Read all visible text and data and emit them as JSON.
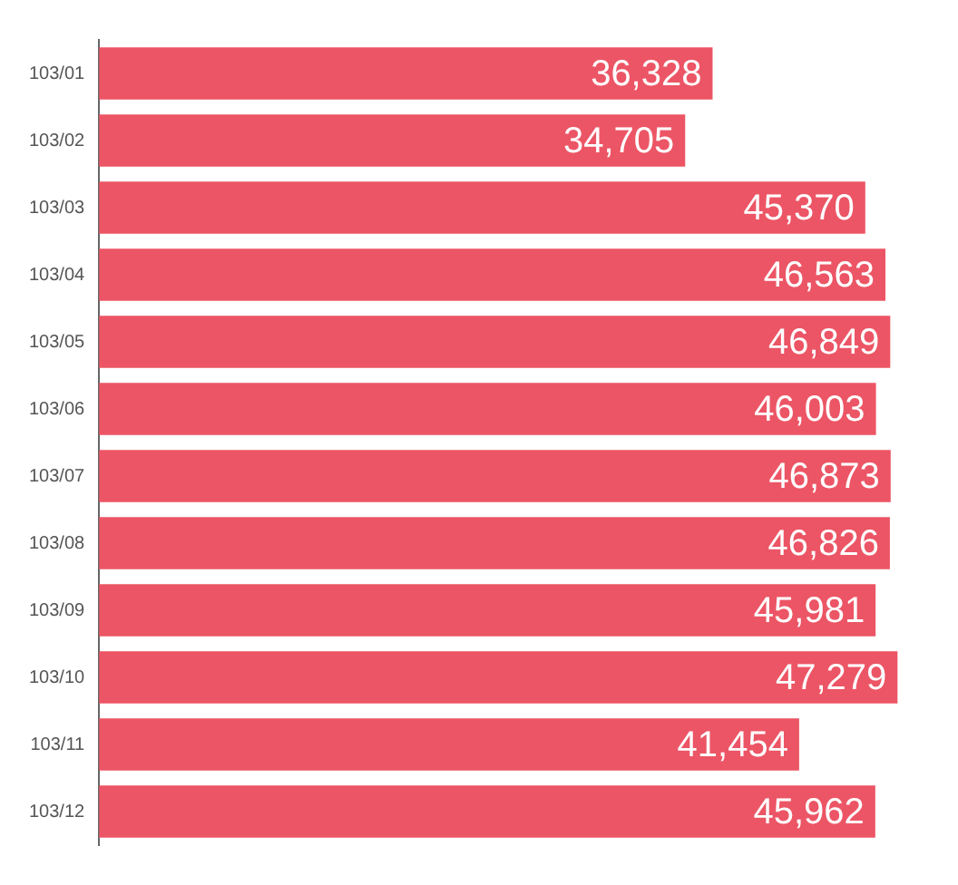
{
  "chart_data": {
    "type": "bar",
    "orientation": "horizontal",
    "categories": [
      "103/01",
      "103/02",
      "103/03",
      "103/04",
      "103/05",
      "103/06",
      "103/07",
      "103/08",
      "103/09",
      "103/10",
      "103/11",
      "103/12"
    ],
    "values": [
      36328,
      34705,
      45370,
      46563,
      46849,
      46003,
      46873,
      46826,
      45981,
      47279,
      41454,
      45962
    ],
    "value_labels": [
      "36,328",
      "34,705",
      "45,370",
      "46,563",
      "46,849",
      "46,003",
      "46,873",
      "46,826",
      "45,981",
      "47,279",
      "41,454",
      "45,962"
    ],
    "color": "#ec5565",
    "grid": false,
    "legend": false
  }
}
